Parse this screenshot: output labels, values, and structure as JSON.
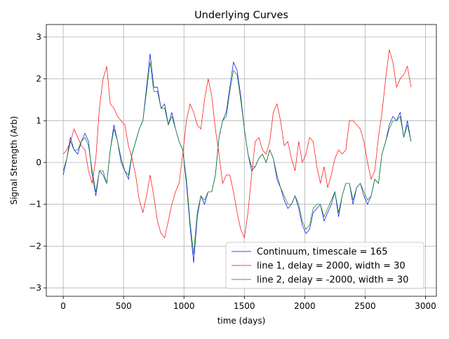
{
  "chart_data": {
    "type": "line",
    "title": "Underlying Curves",
    "x_label": "time (days)",
    "y_label": "Signal Strength (Arb)",
    "x": [
      0,
      30,
      60,
      90,
      120,
      150,
      180,
      210,
      240,
      270,
      300,
      330,
      360,
      390,
      420,
      450,
      480,
      510,
      540,
      570,
      600,
      630,
      660,
      690,
      720,
      750,
      780,
      810,
      840,
      870,
      900,
      930,
      960,
      990,
      1020,
      1050,
      1080,
      1110,
      1140,
      1170,
      1200,
      1230,
      1260,
      1290,
      1320,
      1350,
      1380,
      1410,
      1440,
      1470,
      1500,
      1530,
      1560,
      1590,
      1620,
      1650,
      1680,
      1710,
      1740,
      1770,
      1800,
      1830,
      1860,
      1890,
      1920,
      1950,
      1980,
      2010,
      2040,
      2070,
      2100,
      2130,
      2160,
      2190,
      2220,
      2250,
      2280,
      2310,
      2340,
      2370,
      2400,
      2430,
      2460,
      2490,
      2520,
      2550,
      2580,
      2610,
      2640,
      2670,
      2700,
      2730,
      2760,
      2790,
      2820,
      2850,
      2880
    ],
    "series": [
      {
        "name": "Continuum, timescale = 165",
        "color": "#0000ff",
        "values": [
          -0.3,
          0.1,
          0.6,
          0.3,
          0.2,
          0.5,
          0.7,
          0.5,
          -0.3,
          -0.8,
          -0.2,
          -0.3,
          -0.5,
          0.3,
          0.9,
          0.5,
          0.0,
          -0.2,
          -0.4,
          0.2,
          0.5,
          0.8,
          1.0,
          1.8,
          2.6,
          1.8,
          1.8,
          1.3,
          1.4,
          0.9,
          1.2,
          0.8,
          0.5,
          0.3,
          -0.5,
          -1.5,
          -2.4,
          -1.3,
          -0.8,
          -1.0,
          -0.7,
          -0.7,
          -0.3,
          0.6,
          1.0,
          1.2,
          1.8,
          2.4,
          2.2,
          1.6,
          0.8,
          0.2,
          -0.2,
          -0.1,
          0.1,
          0.2,
          0.0,
          0.3,
          0.1,
          -0.4,
          -0.6,
          -0.9,
          -1.1,
          -1.0,
          -0.8,
          -1.1,
          -1.5,
          -1.7,
          -1.6,
          -1.2,
          -1.1,
          -1.0,
          -1.4,
          -1.2,
          -1.0,
          -0.7,
          -1.3,
          -0.8,
          -0.5,
          -0.5,
          -1.0,
          -0.6,
          -0.5,
          -0.8,
          -1.0,
          -0.8,
          -0.4,
          -0.5,
          0.2,
          0.5,
          0.9,
          1.1,
          1.0,
          1.2,
          0.6,
          1.0,
          0.5
        ]
      },
      {
        "name": "line 1, delay = 2000, width = 30",
        "color": "#ff0000",
        "values": [
          0.2,
          0.3,
          0.5,
          0.8,
          0.6,
          0.4,
          0.3,
          -0.2,
          -0.5,
          0.1,
          1.3,
          2.0,
          2.3,
          1.4,
          1.3,
          1.1,
          1.0,
          0.9,
          0.4,
          0.1,
          -0.3,
          -0.9,
          -1.2,
          -0.8,
          -0.3,
          -0.8,
          -1.4,
          -1.7,
          -1.8,
          -1.4,
          -1.0,
          -0.7,
          -0.5,
          0.2,
          1.0,
          1.4,
          1.2,
          0.9,
          0.8,
          1.5,
          2.0,
          1.6,
          0.8,
          0.2,
          -0.5,
          -0.3,
          -0.3,
          -0.7,
          -1.2,
          -1.6,
          -1.8,
          -1.2,
          -0.3,
          0.5,
          0.6,
          0.3,
          0.2,
          0.5,
          1.2,
          1.4,
          1.0,
          0.4,
          0.5,
          0.1,
          -0.2,
          0.5,
          0.0,
          0.2,
          0.6,
          0.5,
          -0.1,
          -0.5,
          -0.1,
          -0.6,
          -0.3,
          0.1,
          0.3,
          0.2,
          0.3,
          1.0,
          1.0,
          0.9,
          0.8,
          0.5,
          0.0,
          -0.4,
          -0.2,
          0.6,
          1.2,
          2.0,
          2.7,
          2.4,
          1.8,
          2.0,
          2.1,
          2.3,
          1.8
        ]
      },
      {
        "name": "line 2, delay = -2000, width = 30",
        "color": "#008000",
        "values": [
          -0.2,
          0.1,
          0.5,
          0.3,
          0.3,
          0.5,
          0.6,
          0.4,
          -0.2,
          -0.7,
          -0.2,
          -0.2,
          -0.5,
          0.3,
          0.8,
          0.5,
          0.1,
          -0.2,
          -0.3,
          0.2,
          0.5,
          0.8,
          1.0,
          1.7,
          2.4,
          1.7,
          1.7,
          1.3,
          1.3,
          0.9,
          1.1,
          0.8,
          0.5,
          0.3,
          -0.4,
          -1.4,
          -2.2,
          -1.2,
          -0.8,
          -0.9,
          -0.7,
          -0.7,
          -0.3,
          0.6,
          1.0,
          1.1,
          1.7,
          2.2,
          2.1,
          1.5,
          0.8,
          0.2,
          -0.1,
          -0.1,
          0.1,
          0.2,
          0.0,
          0.3,
          0.1,
          -0.3,
          -0.6,
          -0.8,
          -1.0,
          -1.0,
          -0.8,
          -1.0,
          -1.4,
          -1.6,
          -1.5,
          -1.1,
          -1.0,
          -1.0,
          -1.3,
          -1.1,
          -0.9,
          -0.7,
          -1.2,
          -0.8,
          -0.5,
          -0.5,
          -0.9,
          -0.6,
          -0.5,
          -0.7,
          -0.9,
          -0.8,
          -0.4,
          -0.5,
          0.2,
          0.5,
          0.8,
          1.0,
          1.0,
          1.1,
          0.6,
          0.9,
          0.5
        ]
      }
    ],
    "xlim": [
      -140,
      3090
    ],
    "xticks": [
      0,
      500,
      1000,
      1500,
      2000,
      2500,
      3000
    ],
    "ylim": [
      -3.2,
      3.3
    ],
    "yticks": [
      {
        "value": -3,
        "label": "−3"
      },
      {
        "value": -2,
        "label": "−2"
      },
      {
        "value": -1,
        "label": "−1"
      },
      0,
      1,
      2,
      3
    ],
    "grid": true,
    "legend": "lower right"
  }
}
